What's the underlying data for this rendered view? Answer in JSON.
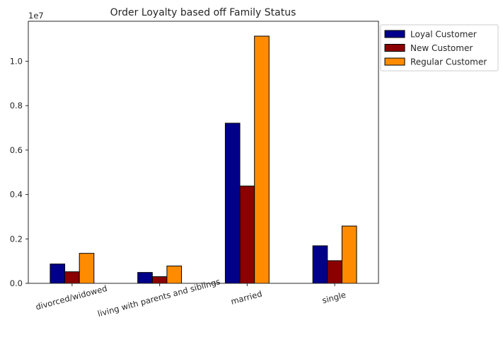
{
  "chart_data": {
    "type": "bar",
    "title": "Order Loyalty based off Family Status",
    "xlabel": "",
    "ylabel": "",
    "offset_text": "1e7",
    "categories": [
      "divorced/widowed",
      "living with parents and siblings",
      "married",
      "single"
    ],
    "series": [
      {
        "name": "Loyal Customer",
        "color": "#00008b",
        "values": [
          870000,
          490000,
          7210000,
          1690000
        ]
      },
      {
        "name": "New Customer",
        "color": "#8b0000",
        "values": [
          520000,
          300000,
          4380000,
          1020000
        ]
      },
      {
        "name": "Regular Customer",
        "color": "#ff8c00",
        "values": [
          1350000,
          780000,
          11130000,
          2580000
        ]
      }
    ],
    "ylim": [
      0,
      11800000
    ],
    "yticks": [
      0,
      2000000,
      4000000,
      6000000,
      8000000,
      10000000
    ],
    "ytick_labels": [
      "0.0",
      "0.2",
      "0.4",
      "0.6",
      "0.8",
      "1.0"
    ],
    "legend_position": "outside-upper-right",
    "grid": false
  }
}
